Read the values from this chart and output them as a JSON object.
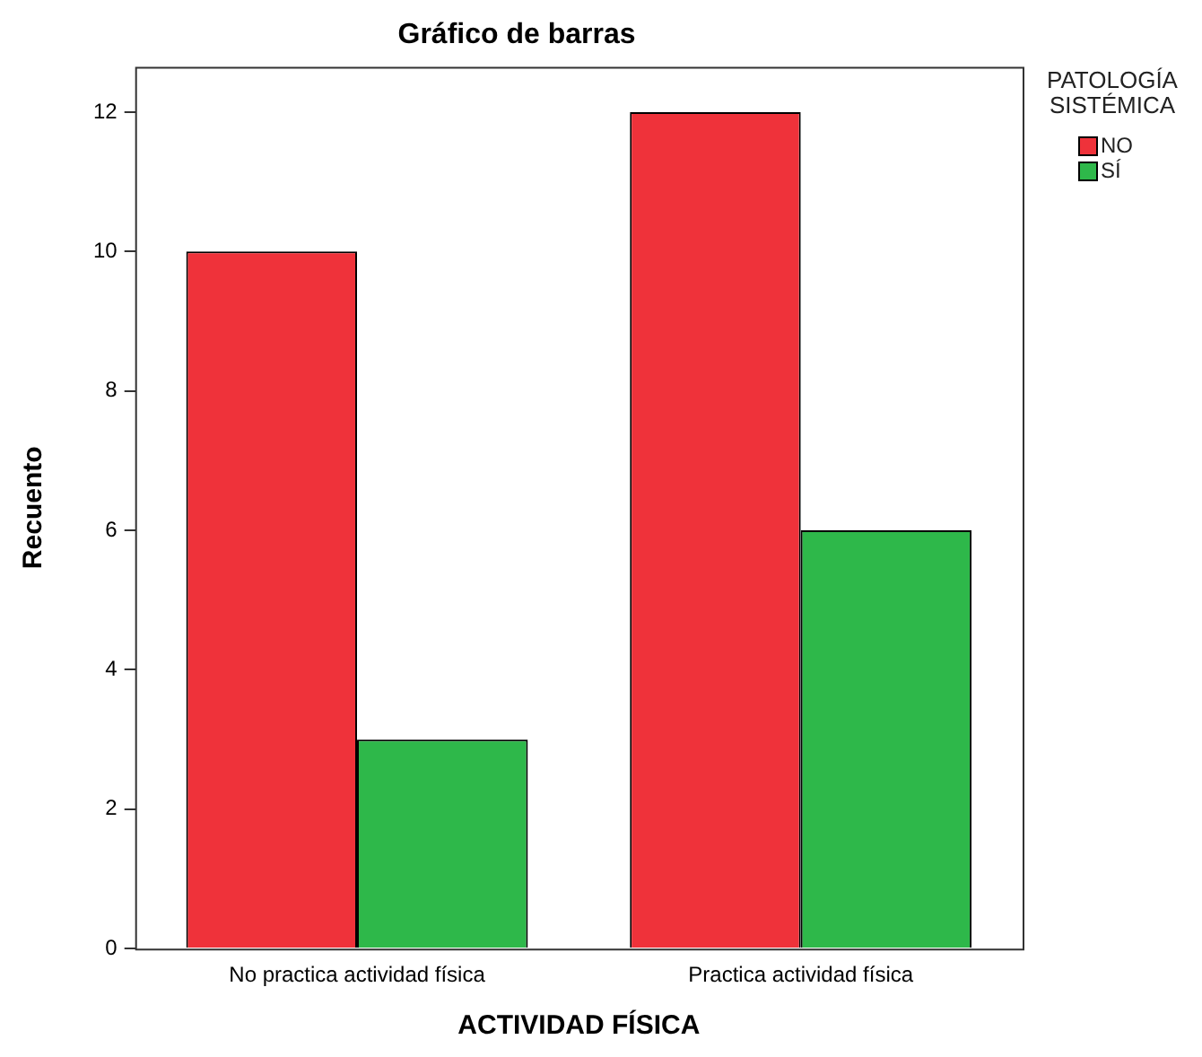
{
  "chart_data": {
    "type": "bar",
    "title": "Gráfico de barras",
    "xlabel": "ACTIVIDAD FÍSICA",
    "ylabel": "Recuento",
    "legend_title": "PATOLOGÍA SISTÉMICA",
    "categories": [
      "No practica actividad física",
      "Practica actividad física"
    ],
    "series": [
      {
        "name": "NO",
        "color": "#ef323a",
        "values": [
          10,
          12
        ]
      },
      {
        "name": "SÍ",
        "color": "#2eb84a",
        "values": [
          3,
          6
        ]
      }
    ],
    "ylim": [
      0,
      12.65
    ],
    "yticks": [
      0,
      2,
      4,
      6,
      8,
      10,
      12
    ],
    "grid": false,
    "legend": "top right"
  }
}
